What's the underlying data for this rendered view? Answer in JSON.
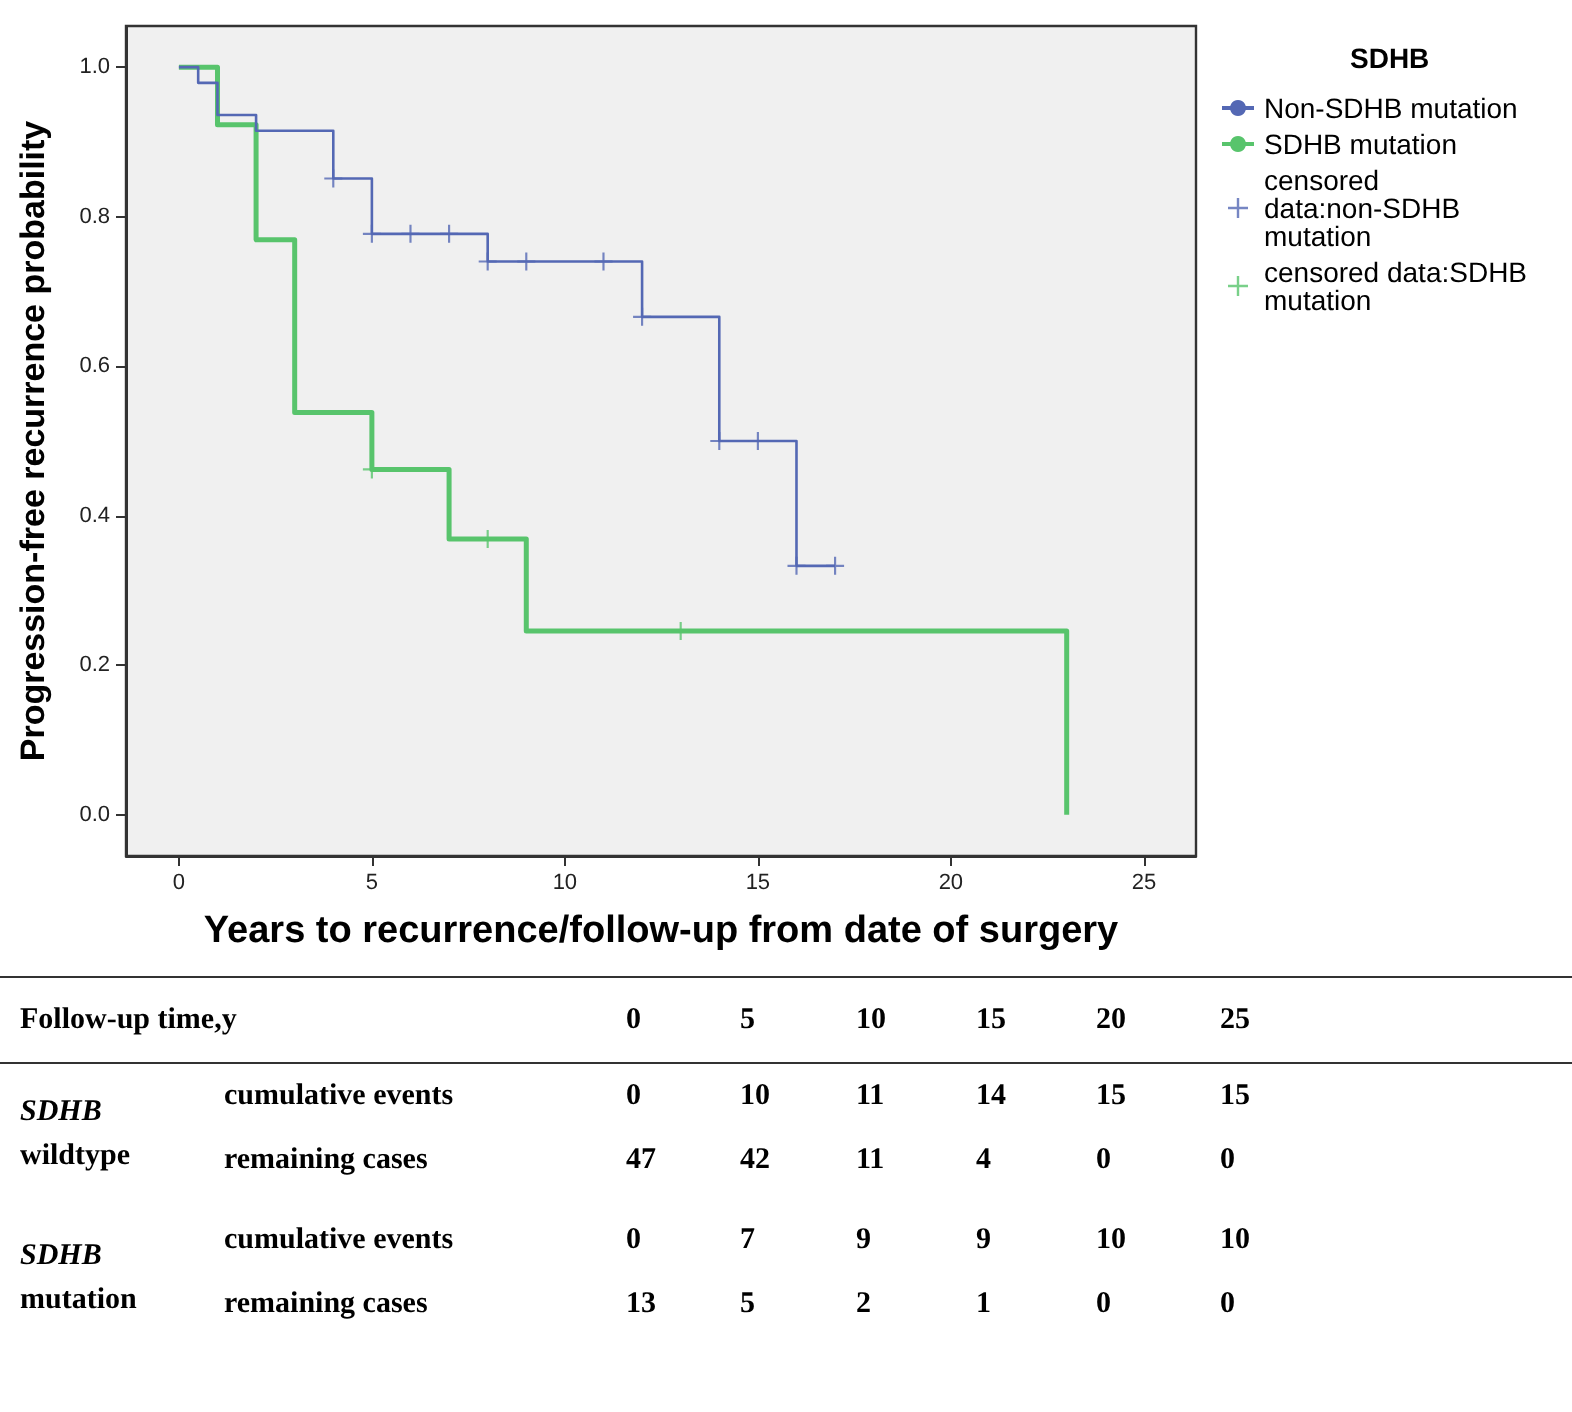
{
  "chart_data": {
    "type": "step",
    "xlabel": "Years to recurrence/follow-up from date of surgery",
    "ylabel": "Progression-free recurrence probability",
    "legend_title": "SDHB",
    "legend": "right",
    "xlim": [
      -1.37,
      26.35
    ],
    "xticks": [
      0,
      5,
      10,
      15,
      20,
      25
    ],
    "ylim": [
      -0.055,
      1.055
    ],
    "yticks": [
      {
        "value": 0,
        "label": "0.0"
      },
      {
        "value": 0.2,
        "label": "0.2"
      },
      {
        "value": 0.4,
        "label": "0.4"
      },
      {
        "value": 0.6,
        "label": "0.6"
      },
      {
        "value": 0.8,
        "label": "0.8"
      },
      {
        "value": 1,
        "label": "1.0"
      }
    ],
    "grid": false,
    "series": [
      {
        "name": "Non-SDHB mutation",
        "type": "step",
        "color": "#5468b4",
        "x": [
          0,
          0.5,
          1,
          2,
          4,
          5,
          8,
          12,
          14,
          16,
          17
        ],
        "values": [
          1,
          0.979,
          0.936,
          0.915,
          0.851,
          0.777,
          0.74,
          0.666,
          0.5,
          0.333,
          0.333
        ]
      },
      {
        "name": "SDHB mutation",
        "type": "step",
        "color": "#58c46c",
        "x": [
          0,
          1,
          2,
          3,
          5,
          7,
          9,
          23
        ],
        "values": [
          1,
          0.923,
          0.769,
          0.538,
          0.462,
          0.369,
          0.246,
          0
        ]
      },
      {
        "name": "censored data:non-SDHB mutation",
        "type": "scatter",
        "marker": "cross",
        "color": "#5468b4",
        "x": [
          4,
          5,
          6,
          7,
          8,
          9,
          11,
          12,
          14,
          15,
          16,
          17
        ],
        "values": [
          0.851,
          0.777,
          0.777,
          0.777,
          0.74,
          0.74,
          0.74,
          0.666,
          0.5,
          0.5,
          0.333,
          0.333
        ]
      },
      {
        "name": "censored data:SDHB mutation",
        "type": "scatter",
        "marker": "cross",
        "color": "#58c46c",
        "x": [
          5,
          8,
          13
        ],
        "values": [
          0.462,
          0.369,
          0.246
        ]
      }
    ],
    "annotations": [
      "Follow-up time,y",
      "0",
      "5",
      "10",
      "15",
      "20",
      "25",
      "SDHB wildtype",
      "cumulative events",
      "0",
      "10",
      "11",
      "14",
      "15",
      "15",
      "remaining cases",
      "47",
      "42",
      "11",
      "4",
      "0",
      "0",
      "SDHB mutation",
      "cumulative events",
      "0",
      "7",
      "9",
      "9",
      "10",
      "10",
      "remaining cases",
      "13",
      "5",
      "2",
      "1",
      "0",
      "0"
    ]
  }
}
